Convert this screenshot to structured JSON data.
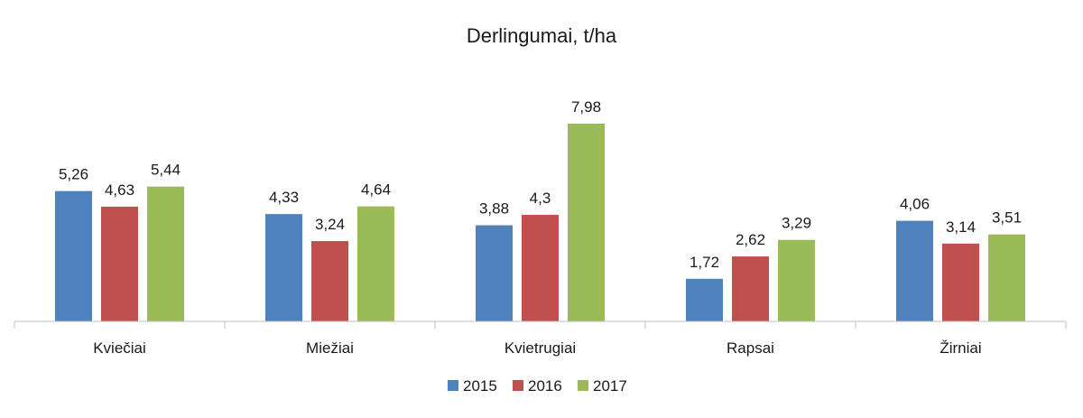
{
  "chart_data": {
    "type": "bar",
    "title": "Derlingumai, t/ha",
    "xlabel": "",
    "ylabel": "",
    "categories": [
      "Kviečiai",
      "Miežiai",
      "Kvietrugiai",
      "Rapsai",
      "Žirniai"
    ],
    "series": [
      {
        "name": "2015",
        "color": "#4f81bd",
        "values": [
          5.26,
          4.33,
          3.88,
          1.72,
          4.06
        ],
        "labels": [
          "5,26",
          "4,33",
          "3,88",
          "1,72",
          "4,06"
        ]
      },
      {
        "name": "2016",
        "color": "#c0504d",
        "values": [
          4.63,
          3.24,
          4.3,
          2.62,
          3.14
        ],
        "labels": [
          "4,63",
          "3,24",
          "4,3",
          "2,62",
          "3,14"
        ]
      },
      {
        "name": "2017",
        "color": "#9bbb59",
        "values": [
          5.44,
          4.64,
          7.98,
          3.29,
          3.51
        ],
        "labels": [
          "5,44",
          "4,64",
          "7,98",
          "3,29",
          "3,51"
        ]
      }
    ],
    "ylim": [
      0,
      9
    ],
    "grid": false,
    "legend": "bottom"
  }
}
